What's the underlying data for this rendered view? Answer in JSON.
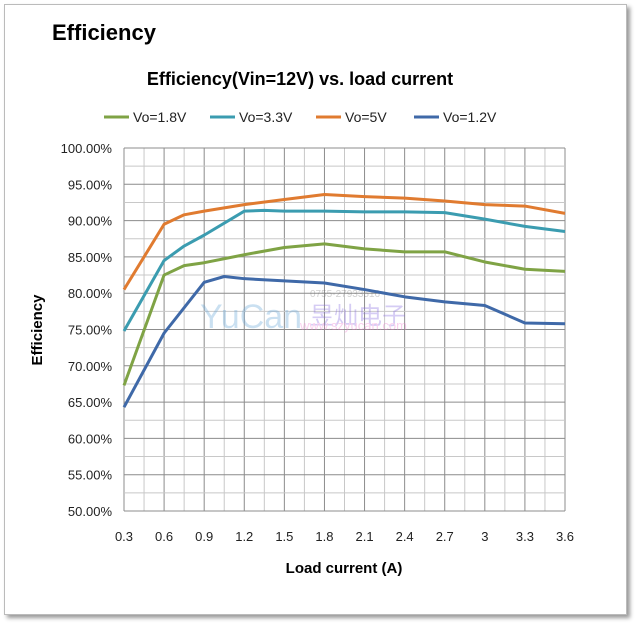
{
  "heading": "Efficiency",
  "watermark": {
    "brand": "YuCan",
    "chinese": "昱灿电子",
    "phone": "0755-27933516",
    "url": "www.szyucan.com"
  },
  "chart_data": {
    "type": "line",
    "title": "Efficiency(Vin=12V) vs. load current",
    "xlabel": "Load current (A)",
    "ylabel": "Efficiency",
    "xlim": [
      0.3,
      3.6
    ],
    "ylim": [
      50,
      100
    ],
    "x_ticks": [
      "0.3",
      "0.6",
      "0.9",
      "1.2",
      "1.5",
      "1.8",
      "2.1",
      "2.4",
      "2.7",
      "3",
      "3.3",
      "3.6"
    ],
    "y_ticks": [
      "50.00%",
      "55.00%",
      "60.00%",
      "65.00%",
      "70.00%",
      "75.00%",
      "80.00%",
      "85.00%",
      "90.00%",
      "95.00%",
      "100.00%"
    ],
    "grid": true,
    "legend": "top",
    "series": [
      {
        "name": "Vo=1.8V",
        "color": "#7fa345",
        "x": [
          0.3,
          0.6,
          0.75,
          0.9,
          1.2,
          1.5,
          1.8,
          2.1,
          2.4,
          2.7,
          3.0,
          3.3,
          3.6
        ],
        "y": [
          67.3,
          82.5,
          83.8,
          84.2,
          85.3,
          86.3,
          86.8,
          86.1,
          85.7,
          85.7,
          84.3,
          83.3,
          83.0
        ]
      },
      {
        "name": "Vo=3.3V",
        "color": "#3b9cb0",
        "x": [
          0.3,
          0.6,
          0.75,
          0.9,
          1.2,
          1.35,
          1.5,
          1.8,
          2.1,
          2.4,
          2.7,
          3.0,
          3.3,
          3.6
        ],
        "y": [
          74.8,
          84.5,
          86.5,
          88.0,
          91.3,
          91.4,
          91.3,
          91.3,
          91.2,
          91.2,
          91.1,
          90.2,
          89.2,
          88.5
        ]
      },
      {
        "name": "Vo=5V",
        "color": "#e07b30",
        "x": [
          0.3,
          0.6,
          0.75,
          0.9,
          1.2,
          1.5,
          1.8,
          2.1,
          2.4,
          2.7,
          3.0,
          3.3,
          3.6
        ],
        "y": [
          80.5,
          89.5,
          90.8,
          91.3,
          92.2,
          92.9,
          93.6,
          93.3,
          93.1,
          92.7,
          92.2,
          92.0,
          91.0
        ]
      },
      {
        "name": "Vo=1.2V",
        "color": "#3f69a8",
        "x": [
          0.3,
          0.6,
          0.9,
          1.05,
          1.2,
          1.5,
          1.8,
          2.1,
          2.4,
          2.7,
          3.0,
          3.3,
          3.6
        ],
        "y": [
          64.3,
          74.5,
          81.5,
          82.3,
          82.0,
          81.7,
          81.4,
          80.5,
          79.5,
          78.8,
          78.3,
          75.9,
          75.8
        ]
      }
    ]
  }
}
